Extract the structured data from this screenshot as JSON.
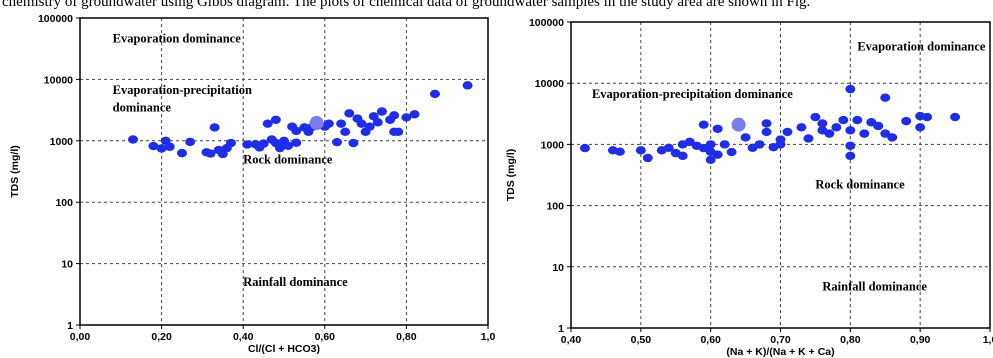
{
  "caption_fragment": "chemistry of groundwater using Gibbs diagram. The plots of chemical data of groundwater samples in the study area are shown in Fig.",
  "chart_data": [
    {
      "type": "scatter",
      "title": "",
      "xlabel": "Cl/(Cl + HCO3)",
      "ylabel": "TDS (mg/l)",
      "xlim": [
        0,
        1
      ],
      "ylim": [
        1,
        100000
      ],
      "yscale": "log",
      "grid": true,
      "xticks": [
        0,
        0.2,
        0.4,
        0.6,
        0.8,
        1.0
      ],
      "xtick_labels": [
        "0,00",
        "0,20",
        "0,40",
        "0,60",
        "0,80",
        "1,0"
      ],
      "yticks": [
        1,
        10,
        100,
        1000,
        10000,
        100000
      ],
      "ytick_labels": [
        "1",
        "10",
        "100",
        "1000",
        "10000",
        "100000"
      ],
      "point_color": "#1f2ee6",
      "highlight_color": "#7b7bec",
      "annotations": [
        {
          "text": "Evaporation dominance",
          "x": 0.08,
          "y": 40000
        },
        {
          "text": "Evaporation-precipitation",
          "x": 0.08,
          "y": 5800
        },
        {
          "text": "dominance",
          "x": 0.08,
          "y": 3000
        },
        {
          "text": "Rock dominance",
          "x": 0.4,
          "y": 430
        },
        {
          "text": "Rainfall dominance",
          "x": 0.4,
          "y": 4.3
        }
      ],
      "points": [
        [
          0.13,
          1050
        ],
        [
          0.18,
          820
        ],
        [
          0.2,
          750
        ],
        [
          0.21,
          1000
        ],
        [
          0.22,
          800
        ],
        [
          0.25,
          630
        ],
        [
          0.27,
          960
        ],
        [
          0.31,
          650
        ],
        [
          0.32,
          620
        ],
        [
          0.33,
          1650
        ],
        [
          0.34,
          710
        ],
        [
          0.35,
          610
        ],
        [
          0.36,
          760
        ],
        [
          0.37,
          920
        ],
        [
          0.41,
          870
        ],
        [
          0.43,
          880
        ],
        [
          0.44,
          780
        ],
        [
          0.45,
          900
        ],
        [
          0.46,
          1900
        ],
        [
          0.47,
          1050
        ],
        [
          0.48,
          2200
        ],
        [
          0.48,
          920
        ],
        [
          0.49,
          760
        ],
        [
          0.5,
          1000
        ],
        [
          0.51,
          830
        ],
        [
          0.52,
          1700
        ],
        [
          0.53,
          930
        ],
        [
          0.53,
          1450
        ],
        [
          0.55,
          1650
        ],
        [
          0.56,
          1400
        ],
        [
          0.57,
          1700
        ],
        [
          0.6,
          1700
        ],
        [
          0.61,
          1900
        ],
        [
          0.63,
          950
        ],
        [
          0.64,
          1900
        ],
        [
          0.65,
          1400
        ],
        [
          0.66,
          2800
        ],
        [
          0.67,
          920
        ],
        [
          0.68,
          2300
        ],
        [
          0.69,
          1900
        ],
        [
          0.7,
          1400
        ],
        [
          0.71,
          1700
        ],
        [
          0.72,
          2500
        ],
        [
          0.73,
          2000
        ],
        [
          0.74,
          3000
        ],
        [
          0.76,
          2200
        ],
        [
          0.77,
          2600
        ],
        [
          0.77,
          1400
        ],
        [
          0.78,
          1400
        ],
        [
          0.8,
          2400
        ],
        [
          0.82,
          2700
        ],
        [
          0.87,
          5800
        ],
        [
          0.95,
          8000
        ]
      ],
      "highlight_points": [
        [
          0.58,
          1950
        ]
      ]
    },
    {
      "type": "scatter",
      "title": "",
      "xlabel": "(Na + K)/(Na + K + Ca)",
      "ylabel": "TDS (mg/l)",
      "xlim": [
        0.4,
        1
      ],
      "ylim": [
        1,
        100000
      ],
      "yscale": "log",
      "grid": true,
      "xticks": [
        0.4,
        0.5,
        0.6,
        0.7,
        0.8,
        0.9,
        1.0
      ],
      "xtick_labels": [
        "0,40",
        "0,50",
        "0,60",
        "0,70",
        "0,80",
        "0,90",
        "1,0"
      ],
      "yticks": [
        1,
        10,
        100,
        1000,
        10000,
        100000
      ],
      "ytick_labels": [
        "1",
        "10",
        "100",
        "1000",
        "10000",
        "100000"
      ],
      "point_color": "#1f2ee6",
      "highlight_color": "#7b7bec",
      "annotations": [
        {
          "text": "Evaporation dominance",
          "x": 0.81,
          "y": 34000
        },
        {
          "text": "Evaporation-precipitation dominance",
          "x": 0.43,
          "y": 5700
        },
        {
          "text": "Rock dominance",
          "x": 0.75,
          "y": 190
        },
        {
          "text": "Rainfall dominance",
          "x": 0.76,
          "y": 4.1
        }
      ],
      "points": [
        [
          0.42,
          870
        ],
        [
          0.46,
          800
        ],
        [
          0.47,
          760
        ],
        [
          0.5,
          800
        ],
        [
          0.51,
          600
        ],
        [
          0.53,
          800
        ],
        [
          0.54,
          880
        ],
        [
          0.55,
          720
        ],
        [
          0.56,
          650
        ],
        [
          0.56,
          1000
        ],
        [
          0.57,
          1100
        ],
        [
          0.58,
          950
        ],
        [
          0.59,
          870
        ],
        [
          0.59,
          2100
        ],
        [
          0.6,
          560
        ],
        [
          0.6,
          760
        ],
        [
          0.6,
          1000
        ],
        [
          0.61,
          680
        ],
        [
          0.61,
          1800
        ],
        [
          0.62,
          1000
        ],
        [
          0.63,
          750
        ],
        [
          0.65,
          1300
        ],
        [
          0.66,
          880
        ],
        [
          0.67,
          1000
        ],
        [
          0.68,
          1600
        ],
        [
          0.68,
          2200
        ],
        [
          0.69,
          900
        ],
        [
          0.7,
          1200
        ],
        [
          0.7,
          1000
        ],
        [
          0.71,
          1600
        ],
        [
          0.73,
          1900
        ],
        [
          0.74,
          1250
        ],
        [
          0.75,
          2800
        ],
        [
          0.76,
          1700
        ],
        [
          0.76,
          2200
        ],
        [
          0.77,
          1500
        ],
        [
          0.78,
          1900
        ],
        [
          0.79,
          2500
        ],
        [
          0.8,
          8000
        ],
        [
          0.8,
          1700
        ],
        [
          0.8,
          650
        ],
        [
          0.8,
          950
        ],
        [
          0.81,
          2500
        ],
        [
          0.82,
          1500
        ],
        [
          0.83,
          2300
        ],
        [
          0.84,
          2000
        ],
        [
          0.85,
          5800
        ],
        [
          0.85,
          1500
        ],
        [
          0.86,
          1300
        ],
        [
          0.88,
          2400
        ],
        [
          0.9,
          2900
        ],
        [
          0.91,
          2800
        ],
        [
          0.95,
          2800
        ],
        [
          0.9,
          1900
        ]
      ],
      "highlight_points": [
        [
          0.64,
          2100
        ]
      ]
    }
  ]
}
